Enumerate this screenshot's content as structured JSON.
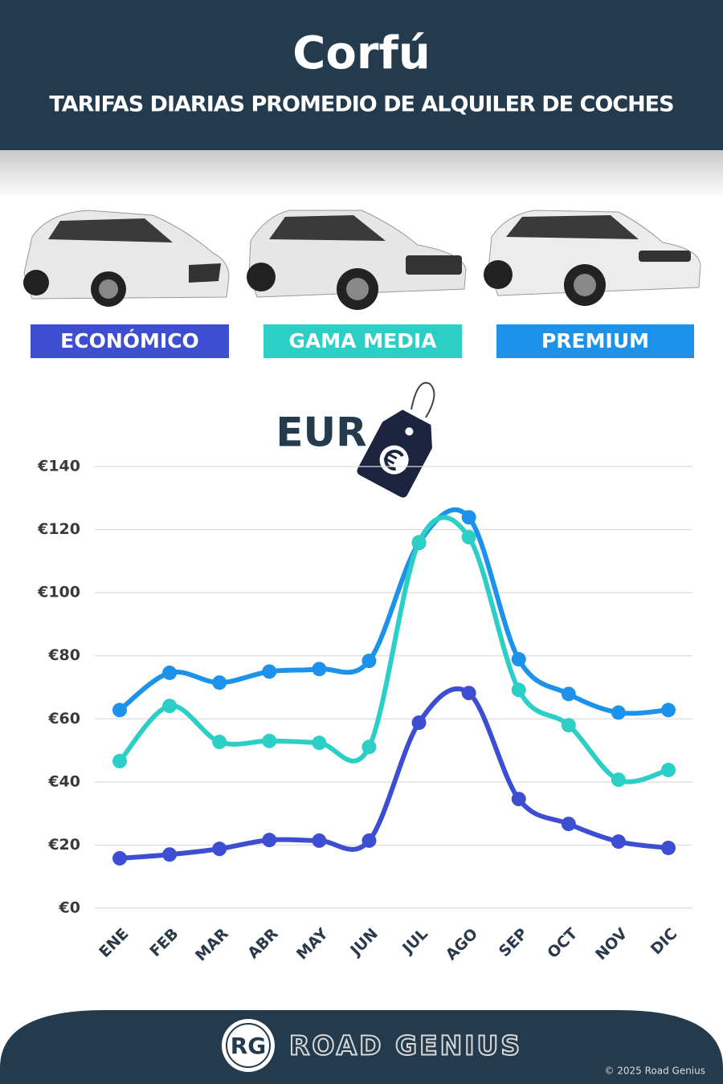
{
  "chart_data": {
    "type": "line",
    "title": "Corfú",
    "subtitle": "TARIFAS DIARIAS PROMEDIO DE ALQUILER DE COCHES",
    "unit_label": "EUR",
    "categories": [
      "ENE",
      "FEB",
      "MAR",
      "ABR",
      "MAY",
      "JUN",
      "JUL",
      "AGO",
      "SEP",
      "OCT",
      "NOV",
      "DIC"
    ],
    "series": [
      {
        "name": "ECONÓMICO",
        "color": "#3d4ed3",
        "values": [
          15.8,
          17,
          18.8,
          21.6,
          21.4,
          21.4,
          58.8,
          68.2,
          34.6,
          26.7,
          21.1,
          19.1
        ]
      },
      {
        "name": "GAMA MEDIA",
        "color": "#2ccfc6",
        "values": [
          46.6,
          64.1,
          52.7,
          53,
          52.4,
          51.1,
          116,
          117.6,
          69.2,
          58,
          40.7,
          43.8
        ]
      },
      {
        "name": "PREMIUM",
        "color": "#1c92ea",
        "values": [
          62.8,
          74.6,
          71.5,
          75,
          75.8,
          78.4,
          115.8,
          123.9,
          78.9,
          67.9,
          62,
          62.8
        ]
      }
    ],
    "ylim": [
      0,
      140
    ],
    "yticks": [
      {
        "value": 0,
        "label": "€0"
      },
      {
        "value": 20,
        "label": "€20"
      },
      {
        "value": 40,
        "label": "€40"
      },
      {
        "value": 60,
        "label": "€60"
      },
      {
        "value": 80,
        "label": "€80"
      },
      {
        "value": 100,
        "label": "€100"
      },
      {
        "value": 120,
        "label": "€120"
      },
      {
        "value": 140,
        "label": "€140"
      }
    ],
    "grid": true
  },
  "footer": {
    "logo": "RG",
    "brand": "ROAD GENIUS",
    "copyright": "© 2025 Road Genius"
  }
}
